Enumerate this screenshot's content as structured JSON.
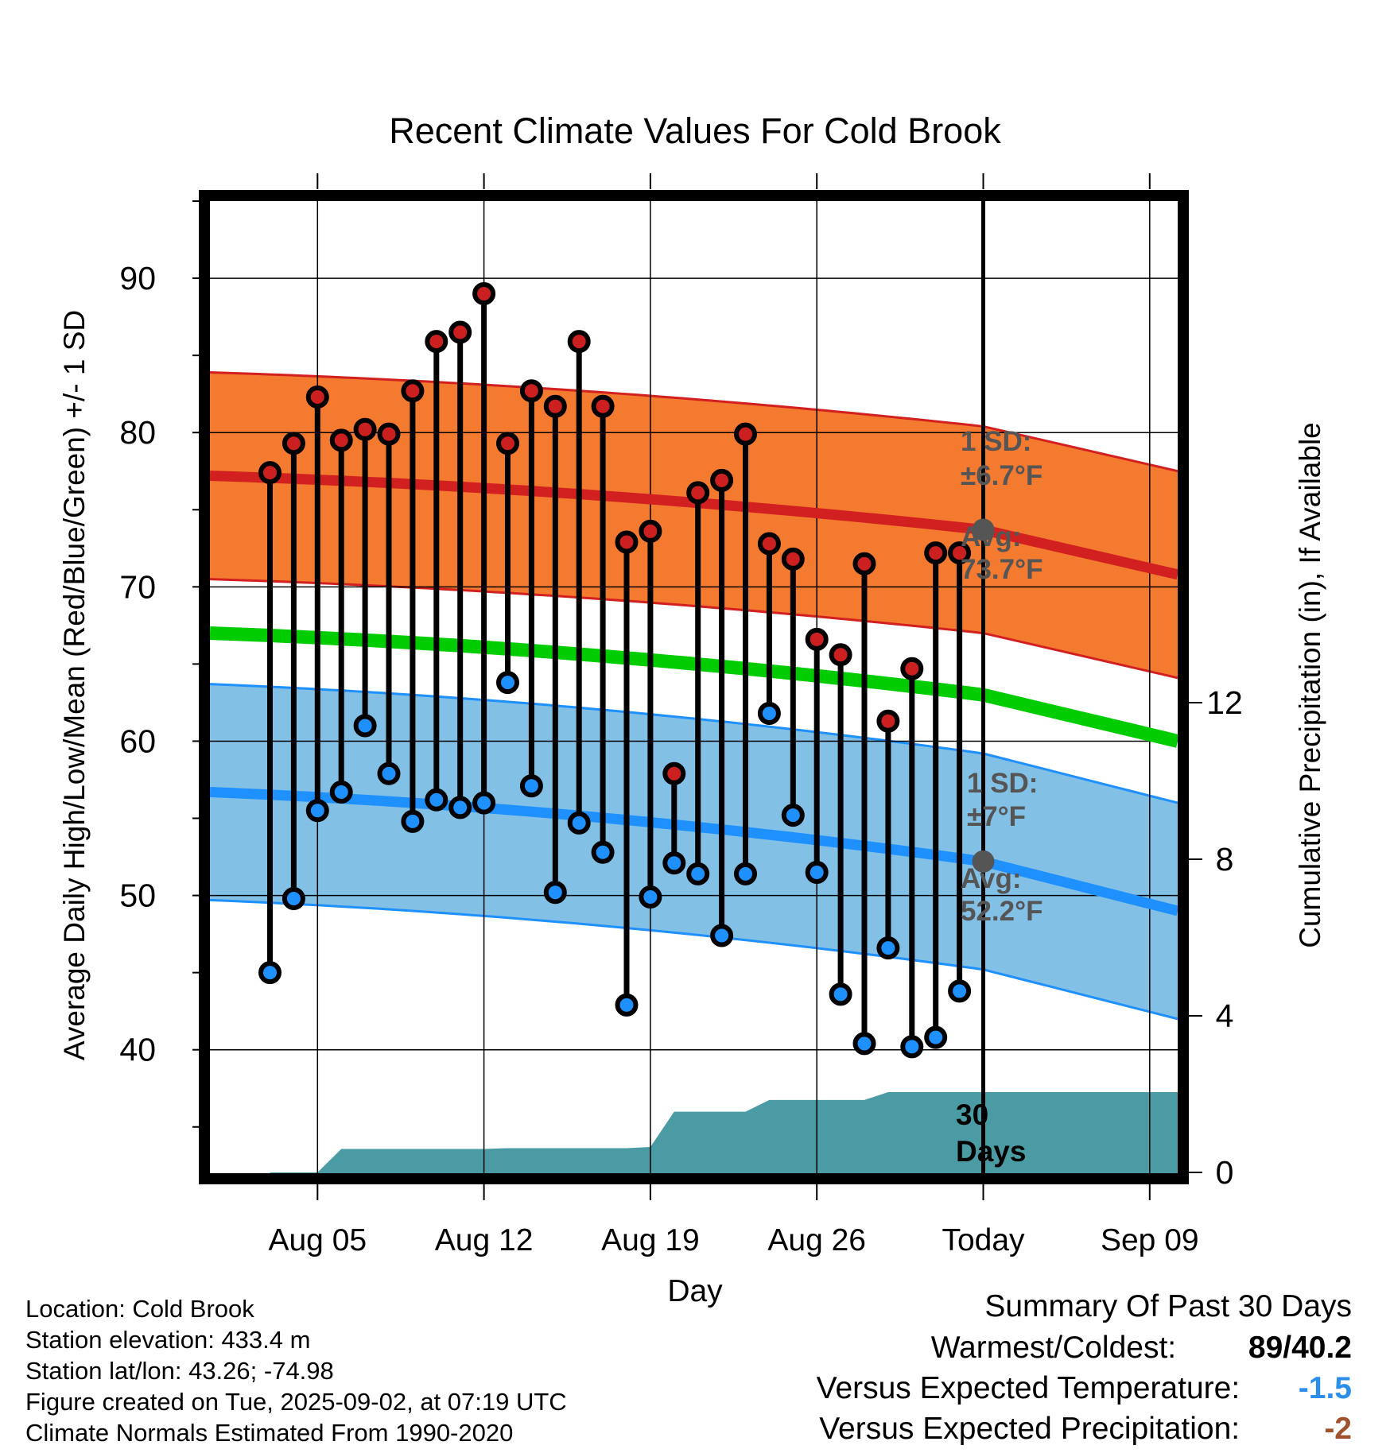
{
  "chart_data": {
    "type": "line",
    "title": "Recent Climate Values For Cold Brook",
    "xlabel": "Day",
    "ylabel": "Average Daily High/Low/Mean (Red/Blue/Green) +/- 1 SD",
    "y2label": "Cumulative Precipitation (in), If Available",
    "ylim": [
      32,
      95
    ],
    "y2lim": [
      0,
      24
    ],
    "yticks": [
      "40",
      "50",
      "60",
      "70",
      "80",
      "90"
    ],
    "y2ticks": [
      "0",
      "4",
      "8",
      "12"
    ],
    "xticks": [
      "Aug 05",
      "Aug 12",
      "Aug 19",
      "Aug 26",
      "Today",
      "Sep 09"
    ],
    "grid": true,
    "dates": [
      "Aug 03",
      "Aug 04",
      "Aug 05",
      "Aug 06",
      "Aug 07",
      "Aug 08",
      "Aug 09",
      "Aug 10",
      "Aug 11",
      "Aug 12",
      "Aug 13",
      "Aug 14",
      "Aug 15",
      "Aug 16",
      "Aug 17",
      "Aug 18",
      "Aug 19",
      "Aug 20",
      "Aug 21",
      "Aug 22",
      "Aug 23",
      "Aug 24",
      "Aug 25",
      "Aug 26",
      "Aug 27",
      "Aug 28",
      "Aug 29",
      "Aug 30",
      "Aug 31",
      "Sep 01"
    ],
    "daily_high": [
      77.4,
      79.3,
      82.3,
      79.5,
      80.2,
      79.9,
      82.7,
      85.9,
      86.5,
      89.0,
      79.3,
      82.7,
      81.7,
      85.9,
      81.7,
      72.9,
      73.6,
      57.9,
      76.1,
      76.9,
      79.9,
      72.8,
      71.8,
      66.6,
      65.6,
      71.5,
      61.3,
      64.7,
      72.2,
      72.2
    ],
    "daily_low": [
      45.0,
      49.8,
      55.5,
      56.7,
      61.0,
      57.9,
      54.8,
      56.2,
      55.7,
      56.0,
      63.8,
      57.1,
      50.2,
      54.7,
      52.8,
      42.9,
      49.9,
      52.1,
      51.4,
      47.4,
      51.4,
      61.8,
      55.2,
      51.5,
      43.6,
      40.4,
      46.6,
      40.2,
      40.8,
      43.8
    ],
    "normal_high": {
      "start": 77.2,
      "today": 73.7,
      "end": 70.8
    },
    "normal_low": {
      "start": 56.7,
      "today": 52.2,
      "end": 49.0
    },
    "normal_mean": {
      "start": 67.0,
      "today": 63.0,
      "end": 60.0
    },
    "sd_high": 6.7,
    "sd_low": 7,
    "cumulative_precip": [
      0,
      0,
      0,
      0.6,
      0.6,
      0.6,
      0.6,
      0.6,
      0.6,
      0.6,
      0.62,
      0.62,
      0.62,
      0.62,
      0.62,
      0.62,
      0.65,
      1.55,
      1.55,
      1.55,
      1.55,
      1.85,
      1.85,
      1.85,
      1.85,
      1.85,
      2.05,
      2.05,
      2.05,
      2.05,
      2.05
    ],
    "annotations": {
      "high_sd_title": "1 SD:",
      "high_sd_value": "±6.7°F",
      "high_avg_title": "Avg:",
      "high_avg_value": "73.7°F",
      "low_sd_title": "1 SD:",
      "low_sd_value": "±7°F",
      "low_avg_title": "Avg:",
      "low_avg_value": "52.2°F",
      "precip_days_1": "30",
      "precip_days_2": "Days"
    },
    "colors": {
      "high_band": "#f47a30",
      "high_line": "#d22020",
      "low_band": "#82c0e6",
      "low_line": "#1e90ff",
      "mean_line": "#00cc00",
      "precip": "#4a9ba4",
      "marker_high": "#cc2020",
      "marker_low": "#1e90ff",
      "annotation": "#555555"
    }
  },
  "meta": {
    "location": "Location: Cold Brook",
    "elevation": "Station elevation: 433.4 m",
    "latlon": "Station lat/lon: 43.26; -74.98",
    "created": "Figure created on Tue, 2025-09-02, at 07:19 UTC",
    "normals": "Climate Normals Estimated From 1990-2020"
  },
  "summary": {
    "title": "Summary Of Past 30 Days",
    "warmest_label": "Warmest/Coldest:",
    "warmest_value": "89/40.2",
    "temp_label": "Versus Expected Temperature:",
    "temp_value": "-1.5",
    "temp_color": "#2b8ee8",
    "precip_label": "Versus Expected Precipitation:",
    "precip_value": "-2",
    "precip_color": "#a0522d"
  }
}
